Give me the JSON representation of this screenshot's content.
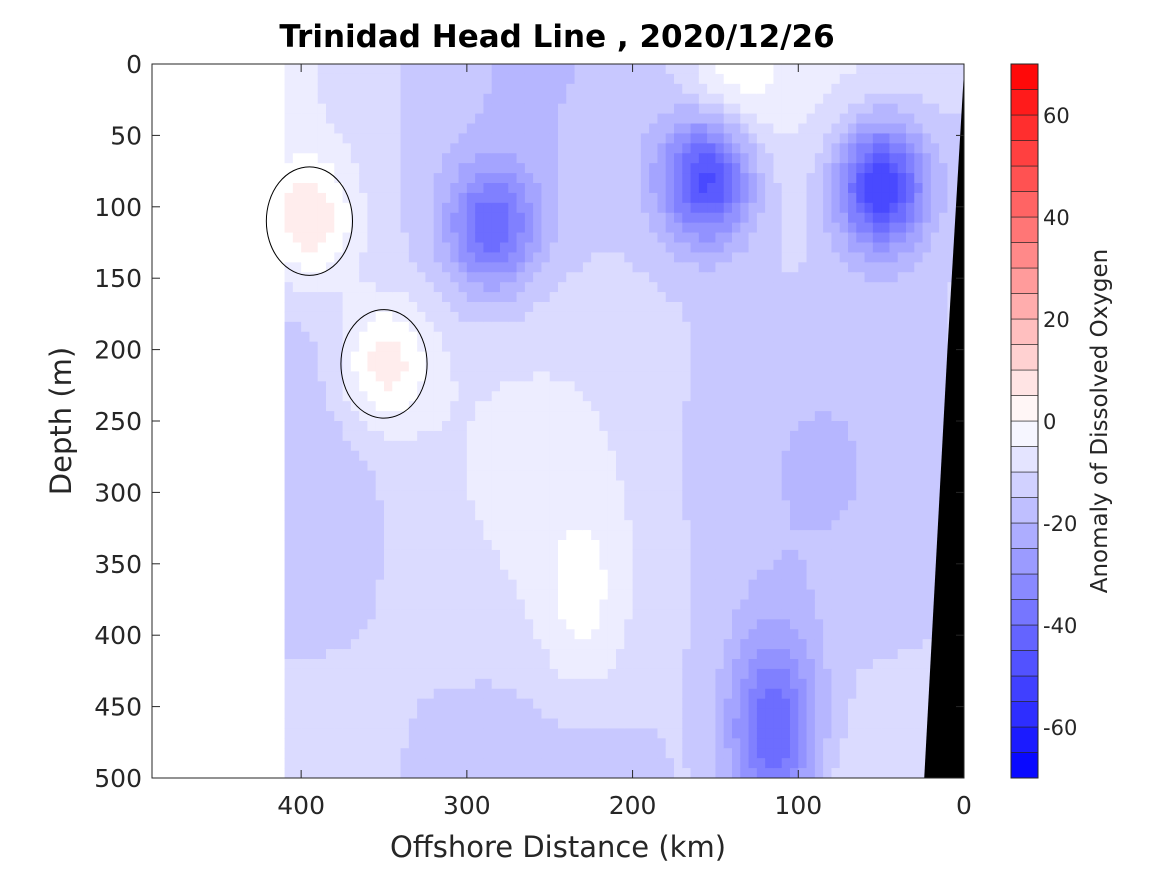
{
  "chart_data": {
    "type": "heatmap",
    "title": "Trinidad Head Line , 2020/12/26",
    "xlabel": "Offshore Distance (km)",
    "ylabel": "Depth (m)",
    "xlim": [
      490,
      0
    ],
    "ylim": [
      0,
      500
    ],
    "x_reversed": true,
    "y_reversed": true,
    "xticks": [
      400,
      300,
      200,
      100,
      0
    ],
    "yticks": [
      0,
      50,
      100,
      150,
      200,
      250,
      300,
      350,
      400,
      450,
      500
    ],
    "data_x_extent": [
      410,
      0
    ],
    "colorbar": {
      "label": "Anomaly of Dissolved Oxygen",
      "range": [
        -70,
        70
      ],
      "ticks": [
        -60,
        -40,
        -20,
        0,
        20,
        40,
        60
      ],
      "level_step": 5,
      "colormap": "blue-white-red",
      "low_color": "#0000ff",
      "mid_color": "#ffffff",
      "high_color": "#ff0000"
    },
    "zero_contour_color": "#000000",
    "seafloor_color": "#000000",
    "features": [
      {
        "x": 285,
        "y": 115,
        "value": -40
      },
      {
        "x": 155,
        "y": 80,
        "value": -50
      },
      {
        "x": 50,
        "y": 85,
        "value": -55
      },
      {
        "x": 115,
        "y": 470,
        "value": -45
      },
      {
        "x": 230,
        "y": 380,
        "value": -3
      },
      {
        "x": 395,
        "y": 110,
        "value": 5
      },
      {
        "x": 350,
        "y": 210,
        "value": 5
      },
      {
        "x": 140,
        "y": 10,
        "value": -2
      }
    ]
  }
}
